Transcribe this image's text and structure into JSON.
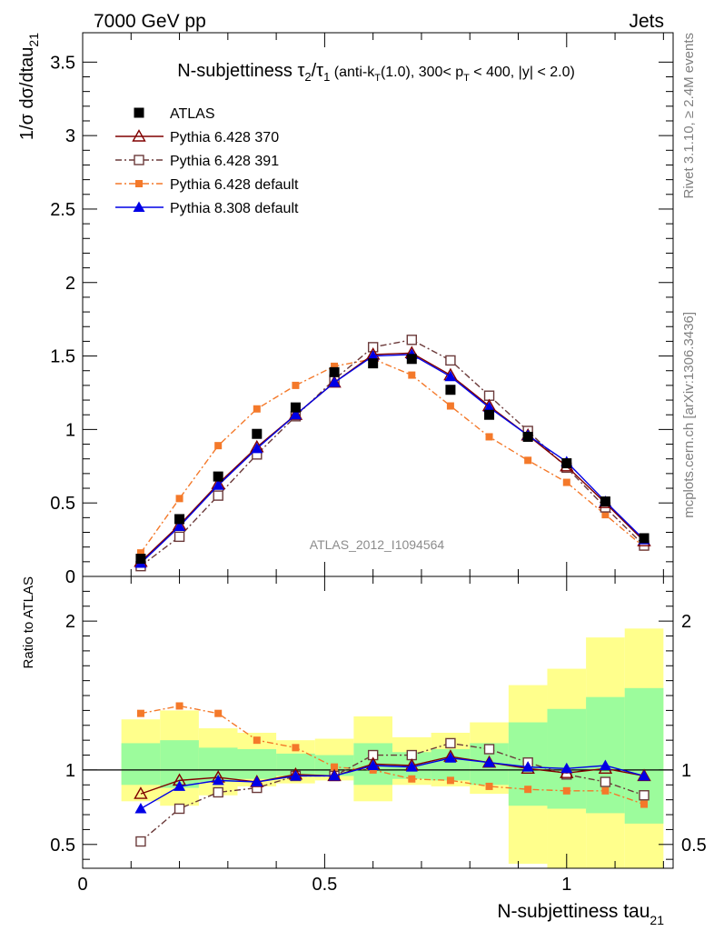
{
  "header": {
    "energy_label": "7000 GeV pp",
    "category_label": "Jets",
    "side_label_rivet": "Rivet 3.1.10, ≥ 2.4M events",
    "side_label_mcplots": "mcplots.cern.ch [arXiv:1306.3436]",
    "analysis_id": "ATLAS_2012_I1094564"
  },
  "plot_title": {
    "main": "N-subjettiness τ",
    "sub2": "2",
    "slash": "/τ",
    "sub1": "1",
    "cuts_a": " (anti-k",
    "cuts_t": "T",
    "cuts_b": "(1.0), 300< p",
    "cuts_c": "T",
    "cuts_d": " < 400, |y| < 2.0)"
  },
  "y_label_top": {
    "main": "1/σ dσ/dtau",
    "sub": "21"
  },
  "y_label_bottom": "Ratio to ATLAS",
  "x_label": {
    "main": "N-subjettiness tau",
    "sub": "21"
  },
  "colors": {
    "atlas": "#000000",
    "p370": "#800000",
    "p391": "#6b3a3a",
    "p6def": "#f4792a",
    "p8def": "#0000e6",
    "band_outer": "#ffff8c",
    "band_inner": "#9cfc9c"
  },
  "legend": [
    {
      "key": "atlas",
      "label": "ATLAS"
    },
    {
      "key": "p370",
      "label": "Pythia 6.428 370"
    },
    {
      "key": "p391",
      "label": "Pythia 6.428 391"
    },
    {
      "key": "p6def",
      "label": "Pythia 6.428 default"
    },
    {
      "key": "p8def",
      "label": "Pythia 8.308 default"
    }
  ],
  "chart_data": [
    {
      "type": "scatter",
      "panel": "main",
      "xlim": [
        0,
        1.22
      ],
      "ylim": [
        0,
        3.7
      ],
      "xticks": [
        "0",
        "0.5",
        "1"
      ],
      "yticks": [
        "0",
        "0.5",
        "1",
        "1.5",
        "2",
        "2.5",
        "3",
        "3.5"
      ],
      "x": [
        0.12,
        0.2,
        0.28,
        0.36,
        0.44,
        0.52,
        0.6,
        0.68,
        0.76,
        0.84,
        0.92,
        1.0,
        1.08,
        1.16
      ],
      "bin_edges": [
        0.08,
        0.16,
        0.24,
        0.32,
        0.4,
        0.48,
        0.56,
        0.64,
        0.72,
        0.8,
        0.88,
        0.96,
        1.04,
        1.12,
        1.2
      ],
      "series": [
        {
          "key": "atlas",
          "name": "ATLAS",
          "values": [
            0.12,
            0.39,
            0.68,
            0.97,
            1.15,
            1.39,
            1.45,
            1.48,
            1.27,
            1.1,
            0.95,
            0.77,
            0.51,
            0.26
          ]
        },
        {
          "key": "p370",
          "name": "Pythia 6.428 370",
          "values": [
            0.1,
            0.35,
            0.63,
            0.88,
            1.1,
            1.32,
            1.51,
            1.52,
            1.37,
            1.16,
            0.96,
            0.75,
            0.5,
            0.24
          ]
        },
        {
          "key": "p391",
          "name": "Pythia 6.428 391",
          "values": [
            0.07,
            0.27,
            0.55,
            0.83,
            1.09,
            1.34,
            1.56,
            1.61,
            1.47,
            1.23,
            0.99,
            0.74,
            0.47,
            0.21
          ]
        },
        {
          "key": "p6def",
          "name": "Pythia 6.428 default",
          "values": [
            0.16,
            0.53,
            0.89,
            1.14,
            1.3,
            1.43,
            1.48,
            1.37,
            1.16,
            0.95,
            0.79,
            0.64,
            0.42,
            0.2
          ]
        },
        {
          "key": "p8def",
          "name": "Pythia 8.308 default",
          "values": [
            0.09,
            0.34,
            0.62,
            0.87,
            1.1,
            1.32,
            1.5,
            1.51,
            1.36,
            1.15,
            0.96,
            0.78,
            0.51,
            0.25
          ]
        }
      ]
    },
    {
      "type": "line",
      "panel": "ratio",
      "xlim": [
        0,
        1.22
      ],
      "ylim": [
        0.34,
        2.3
      ],
      "yticks": [
        "0.5",
        "1",
        "2"
      ],
      "band_outer_lo": [
        0.79,
        0.76,
        0.83,
        0.89,
        0.91,
        0.93,
        0.79,
        0.9,
        0.89,
        0.84,
        0.37,
        0.34,
        0.34,
        0.34
      ],
      "band_outer_hi": [
        1.34,
        1.4,
        1.28,
        1.25,
        1.2,
        1.21,
        1.36,
        1.22,
        1.25,
        1.32,
        1.57,
        1.68,
        1.89,
        1.95
      ],
      "band_inner_lo": [
        0.9,
        0.88,
        0.92,
        0.94,
        0.96,
        0.96,
        0.9,
        0.94,
        0.93,
        0.9,
        0.76,
        0.74,
        0.71,
        0.64
      ],
      "band_inner_hi": [
        1.18,
        1.2,
        1.15,
        1.14,
        1.11,
        1.1,
        1.18,
        1.12,
        1.14,
        1.18,
        1.32,
        1.41,
        1.49,
        1.55
      ],
      "series": [
        {
          "key": "p370",
          "name": "Pythia 6.428 370",
          "values": [
            0.84,
            0.93,
            0.95,
            0.92,
            0.97,
            0.96,
            1.04,
            1.03,
            1.09,
            1.05,
            1.01,
            0.98,
            1.01,
            0.96
          ]
        },
        {
          "key": "p391",
          "name": "Pythia 6.428 391",
          "values": [
            0.52,
            0.74,
            0.85,
            0.88,
            0.96,
            0.96,
            1.1,
            1.1,
            1.18,
            1.14,
            1.05,
            0.97,
            0.92,
            0.83
          ]
        },
        {
          "key": "p6def",
          "name": "Pythia 6.428 default",
          "values": [
            1.38,
            1.43,
            1.38,
            1.2,
            1.15,
            1.02,
            1.0,
            0.94,
            0.93,
            0.89,
            0.87,
            0.86,
            0.86,
            0.77
          ]
        },
        {
          "key": "p8def",
          "name": "Pythia 8.308 default",
          "values": [
            0.74,
            0.89,
            0.93,
            0.92,
            0.96,
            0.96,
            1.03,
            1.02,
            1.08,
            1.05,
            1.02,
            1.01,
            1.03,
            0.96
          ]
        }
      ]
    }
  ]
}
